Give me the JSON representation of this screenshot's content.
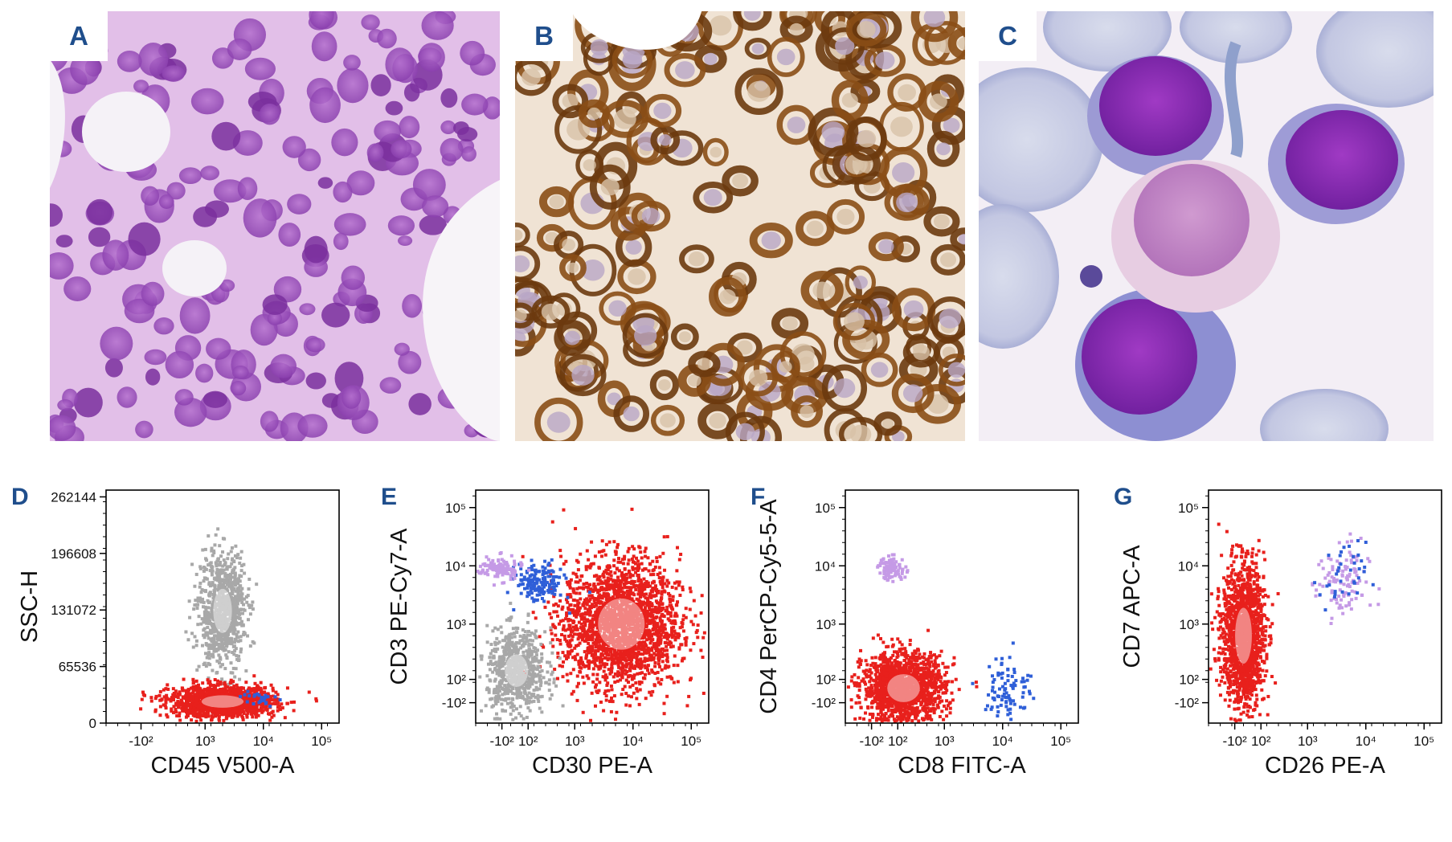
{
  "figure": {
    "micrographs": [
      {
        "id": "panel-a",
        "label": "A",
        "stain": "purple-hematoxylin"
      },
      {
        "id": "panel-b",
        "label": "B",
        "stain": "brown-immunostain"
      },
      {
        "id": "panel-c",
        "label": "C",
        "stain": "blood-smear"
      }
    ],
    "colors": {
      "label_blue": "#1f4e8c",
      "population_red": "#e8201c",
      "population_gray": "#a8a8a8",
      "population_lilac": "#c59ae6",
      "population_blue": "#2f5fd8"
    }
  },
  "chart_data": [
    {
      "panel": "D",
      "type": "scatter",
      "xlabel": "CD45 V500-A",
      "ylabel": "SSC-H",
      "x_scale": "logicle",
      "x_ticks": [
        "-10²",
        "10³",
        "10⁴",
        "10⁵"
      ],
      "y_scale": "linear",
      "y_ticks": [
        "262144",
        "196608",
        "131072",
        "65536",
        "0"
      ],
      "series": [
        {
          "color": "gray",
          "cx": 3.3,
          "cy": 130000,
          "sx": 0.2,
          "sy": 32000,
          "n": 900
        },
        {
          "color": "red",
          "cx": 3.3,
          "cy": 25000,
          "sx": 0.45,
          "sy": 9000,
          "n": 1400
        },
        {
          "color": "blue",
          "cx": 3.9,
          "cy": 27000,
          "sx": 0.15,
          "sy": 6000,
          "n": 25
        }
      ]
    },
    {
      "panel": "E",
      "type": "scatter",
      "xlabel": "CD30 PE-A",
      "ylabel": "CD3 PE-Cy7-A",
      "x_scale": "logicle",
      "x_ticks": [
        "-10²",
        "10²",
        "10³",
        "10⁴",
        "10⁵"
      ],
      "y_ticks": [
        "10⁵",
        "10⁴",
        "10³",
        "10²",
        "-10²"
      ],
      "series": [
        {
          "color": "red",
          "cx": 3.8,
          "cy": 3.0,
          "sx": 0.5,
          "sy": 0.55,
          "n": 2200
        },
        {
          "color": "gray",
          "cx": 2.0,
          "cy": 2.2,
          "sx": 0.25,
          "sy": 0.35,
          "n": 700
        },
        {
          "color": "blue",
          "cx": 2.4,
          "cy": 3.7,
          "sx": 0.2,
          "sy": 0.17,
          "n": 160
        },
        {
          "color": "lilac",
          "cx": 1.7,
          "cy": 3.95,
          "sx": 0.2,
          "sy": 0.1,
          "n": 120
        }
      ]
    },
    {
      "panel": "F",
      "type": "scatter",
      "xlabel": "CD8 FITC-A",
      "ylabel": "CD4 PerCP-Cy5-5-A",
      "x_scale": "logicle",
      "x_ticks": [
        "-10²",
        "10²",
        "10³",
        "10⁴",
        "10⁵"
      ],
      "y_ticks": [
        "10⁵",
        "10⁴",
        "10³",
        "10²",
        "-10²"
      ],
      "series": [
        {
          "color": "red",
          "cx": 2.3,
          "cy": 1.9,
          "sx": 0.35,
          "sy": 0.3,
          "n": 1500
        },
        {
          "color": "lilac",
          "cx": 2.1,
          "cy": 3.95,
          "sx": 0.12,
          "sy": 0.1,
          "n": 90
        },
        {
          "color": "blue",
          "cx": 4.1,
          "cy": 1.9,
          "sx": 0.2,
          "sy": 0.3,
          "n": 90
        }
      ]
    },
    {
      "panel": "G",
      "type": "scatter",
      "xlabel": "CD26 PE-A",
      "ylabel": "CD7 APC-A",
      "x_scale": "logicle",
      "x_ticks": [
        "-10²",
        "10²",
        "10³",
        "10⁴",
        "10⁵"
      ],
      "y_ticks": [
        "10⁵",
        "10⁴",
        "10³",
        "10²",
        "-10²"
      ],
      "series": [
        {
          "color": "red",
          "cx": 1.9,
          "cy": 2.8,
          "sx": 0.18,
          "sy": 0.6,
          "n": 1500
        },
        {
          "color": "lilac",
          "cx": 3.6,
          "cy": 3.7,
          "sx": 0.22,
          "sy": 0.35,
          "n": 110
        },
        {
          "color": "blue",
          "cx": 3.6,
          "cy": 3.8,
          "sx": 0.2,
          "sy": 0.3,
          "n": 35
        }
      ]
    }
  ]
}
